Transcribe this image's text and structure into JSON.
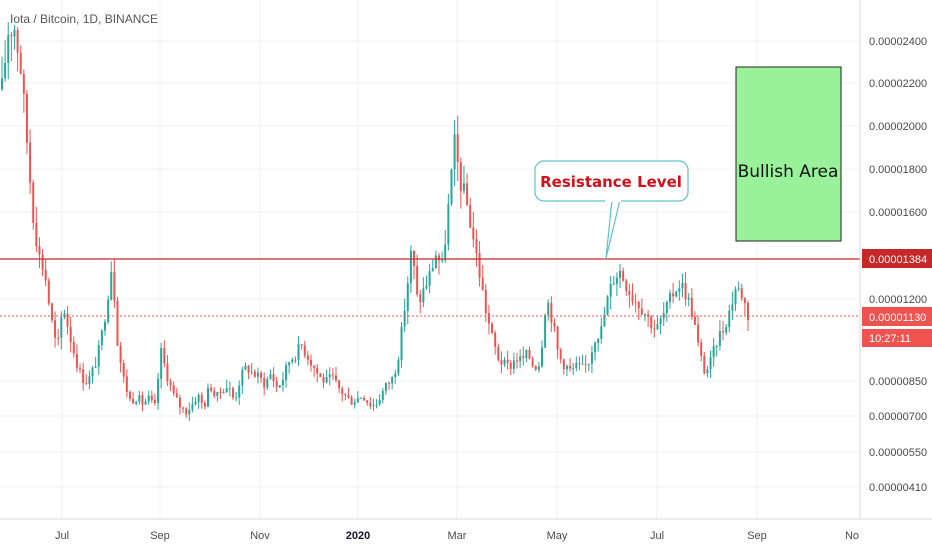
{
  "header": {
    "symbol_title": "Iota / Bitcoin, 1D, BINANCE"
  },
  "colors": {
    "up": "#26a69a",
    "down": "#ef5350",
    "resistance": "#c62828",
    "current_price_line": "#ef5350",
    "bullish_fill": "#99f199",
    "bullish_border": "#222222",
    "bubble_border": "#5fc2c8",
    "bubble_text": "#d0101b"
  },
  "chart_data": {
    "type": "candlestick",
    "x_ticks": [
      "Jul",
      "Sep",
      "Nov",
      "2020",
      "Mar",
      "May",
      "Jul",
      "Sep",
      "No"
    ],
    "y_ticks": [
      "0.00002400",
      "0.00002200",
      "0.00002000",
      "0.00001800",
      "0.00001600",
      "0.00001200",
      "0.00000850",
      "0.00000700",
      "0.00000550",
      "0.00000410"
    ],
    "annotations": {
      "resistance": {
        "label": "Resistance Level",
        "price_label": "0.00001384"
      },
      "bullish_area": {
        "label": "Bullish Area"
      },
      "current_price": {
        "price_label": "0.00001130",
        "countdown": "10:27:11"
      }
    },
    "keypoints": [
      [
        0,
        2.18
      ],
      [
        1,
        2.45
      ],
      [
        2,
        2.48
      ],
      [
        3,
        2.3
      ],
      [
        4,
        1.97
      ],
      [
        5,
        1.62
      ],
      [
        6,
        1.41
      ],
      [
        7,
        1.33
      ],
      [
        8,
        1.12
      ],
      [
        9,
        0.96
      ],
      [
        10,
        1.18
      ],
      [
        11,
        1.05
      ],
      [
        12,
        0.93
      ],
      [
        13,
        0.84
      ],
      [
        14,
        0.82
      ],
      [
        15,
        0.88
      ],
      [
        16,
        0.98
      ],
      [
        17,
        1.16
      ],
      [
        18,
        1.38
      ],
      [
        19,
        0.97
      ],
      [
        20,
        0.82
      ],
      [
        21,
        0.73
      ],
      [
        22,
        0.75
      ],
      [
        23,
        0.72
      ],
      [
        24,
        0.74
      ],
      [
        25,
        0.7
      ],
      [
        26,
        0.96
      ],
      [
        27,
        0.85
      ],
      [
        28,
        0.76
      ],
      [
        29,
        0.71
      ],
      [
        30,
        0.68
      ],
      [
        31,
        0.71
      ],
      [
        32,
        0.76
      ],
      [
        33,
        0.7
      ],
      [
        34,
        0.81
      ],
      [
        35,
        0.74
      ],
      [
        36,
        0.79
      ],
      [
        37,
        0.8
      ],
      [
        38,
        0.73
      ],
      [
        39,
        0.84
      ],
      [
        40,
        0.89
      ],
      [
        41,
        0.86
      ],
      [
        42,
        0.84
      ],
      [
        43,
        0.81
      ],
      [
        44,
        0.86
      ],
      [
        45,
        0.79
      ],
      [
        46,
        0.84
      ],
      [
        47,
        0.92
      ],
      [
        48,
        0.95
      ],
      [
        49,
        0.99
      ],
      [
        50,
        0.94
      ],
      [
        51,
        0.89
      ],
      [
        52,
        0.84
      ],
      [
        53,
        0.82
      ],
      [
        54,
        0.84
      ],
      [
        55,
        0.79
      ],
      [
        56,
        0.76
      ],
      [
        57,
        0.73
      ],
      [
        58,
        0.74
      ],
      [
        59,
        0.76
      ],
      [
        60,
        0.72
      ],
      [
        61,
        0.71
      ],
      [
        62,
        0.76
      ],
      [
        63,
        0.81
      ],
      [
        64,
        0.84
      ],
      [
        65,
        0.97
      ],
      [
        66,
        1.2
      ],
      [
        67,
        1.44
      ],
      [
        68,
        1.18
      ],
      [
        69,
        1.25
      ],
      [
        70,
        1.32
      ],
      [
        71,
        1.42
      ],
      [
        72,
        1.35
      ],
      [
        73,
        1.63
      ],
      [
        74,
        1.92
      ],
      [
        75,
        1.75
      ],
      [
        76,
        1.65
      ],
      [
        77,
        1.5
      ],
      [
        78,
        1.34
      ],
      [
        79,
        1.17
      ],
      [
        80,
        1.04
      ],
      [
        81,
        0.94
      ],
      [
        82,
        0.9
      ],
      [
        83,
        0.89
      ],
      [
        84,
        0.93
      ],
      [
        85,
        0.92
      ],
      [
        86,
        0.95
      ],
      [
        87,
        0.89
      ],
      [
        88,
        0.91
      ],
      [
        89,
        1.22
      ],
      [
        90,
        1.11
      ],
      [
        91,
        0.94
      ],
      [
        92,
        0.9
      ],
      [
        93,
        0.87
      ],
      [
        94,
        0.89
      ],
      [
        95,
        0.88
      ],
      [
        96,
        0.92
      ],
      [
        97,
        1.03
      ],
      [
        98,
        1.06
      ],
      [
        99,
        1.2
      ],
      [
        100,
        1.3
      ],
      [
        101,
        1.34
      ],
      [
        102,
        1.28
      ],
      [
        103,
        1.22
      ],
      [
        104,
        1.19
      ],
      [
        105,
        1.15
      ],
      [
        106,
        1.1
      ],
      [
        107,
        1.06
      ],
      [
        108,
        1.12
      ],
      [
        109,
        1.18
      ],
      [
        110,
        1.25
      ],
      [
        111,
        1.28
      ],
      [
        112,
        1.22
      ],
      [
        113,
        1.13
      ],
      [
        114,
        0.96
      ],
      [
        115,
        0.86
      ],
      [
        116,
        0.92
      ],
      [
        117,
        1.02
      ],
      [
        118,
        1.07
      ],
      [
        119,
        1.15
      ],
      [
        120,
        1.26
      ],
      [
        121,
        1.23
      ],
      [
        122,
        1.13
      ]
    ]
  }
}
